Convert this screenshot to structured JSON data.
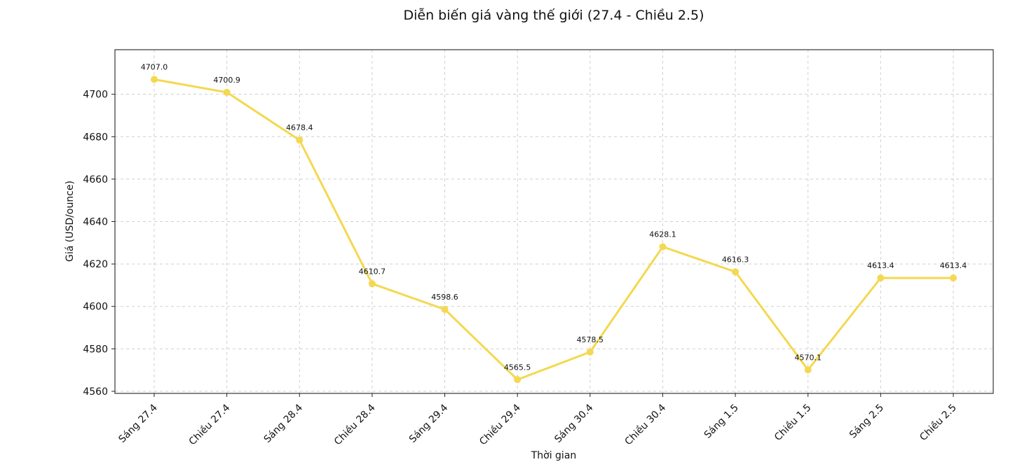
{
  "chart_data": {
    "type": "line",
    "title": "Diễn biến giá vàng thế giới (27.4 - Chiều 2.5)",
    "xlabel": "Thời gian",
    "ylabel": "Giá (USD/ounce)",
    "categories": [
      "Sáng 27.4",
      "Chiều 27.4",
      "Sáng 28.4",
      "Chiều 28.4",
      "Sáng 29.4",
      "Chiều 29.4",
      "Sáng 30.4",
      "Chiều 30.4",
      "Sáng 1.5",
      "Chiều 1.5",
      "Sáng 2.5",
      "Chiều 2.5"
    ],
    "series": [
      {
        "values": [
          4707.0,
          4700.9,
          4678.4,
          4610.7,
          4598.6,
          4565.5,
          4578.5,
          4628.1,
          4616.3,
          4570.1,
          4613.4,
          4613.4
        ],
        "color": "#f4d84f"
      }
    ],
    "data_labels": [
      "4707.0",
      "4700.9",
      "4678.4",
      "4610.7",
      "4598.6",
      "4565.5",
      "4578.5",
      "4628.1",
      "4616.3",
      "4570.1",
      "4613.4",
      "4613.4"
    ],
    "yticks": [
      4560,
      4580,
      4600,
      4620,
      4640,
      4660,
      4680,
      4700
    ],
    "ytick_labels": [
      "4560",
      "4580",
      "4600",
      "4620",
      "4640",
      "4660",
      "4680",
      "4700"
    ],
    "ylim": [
      4559,
      4721
    ],
    "grid": true,
    "legend": "none",
    "line_style": "solid",
    "marker": "circle"
  }
}
